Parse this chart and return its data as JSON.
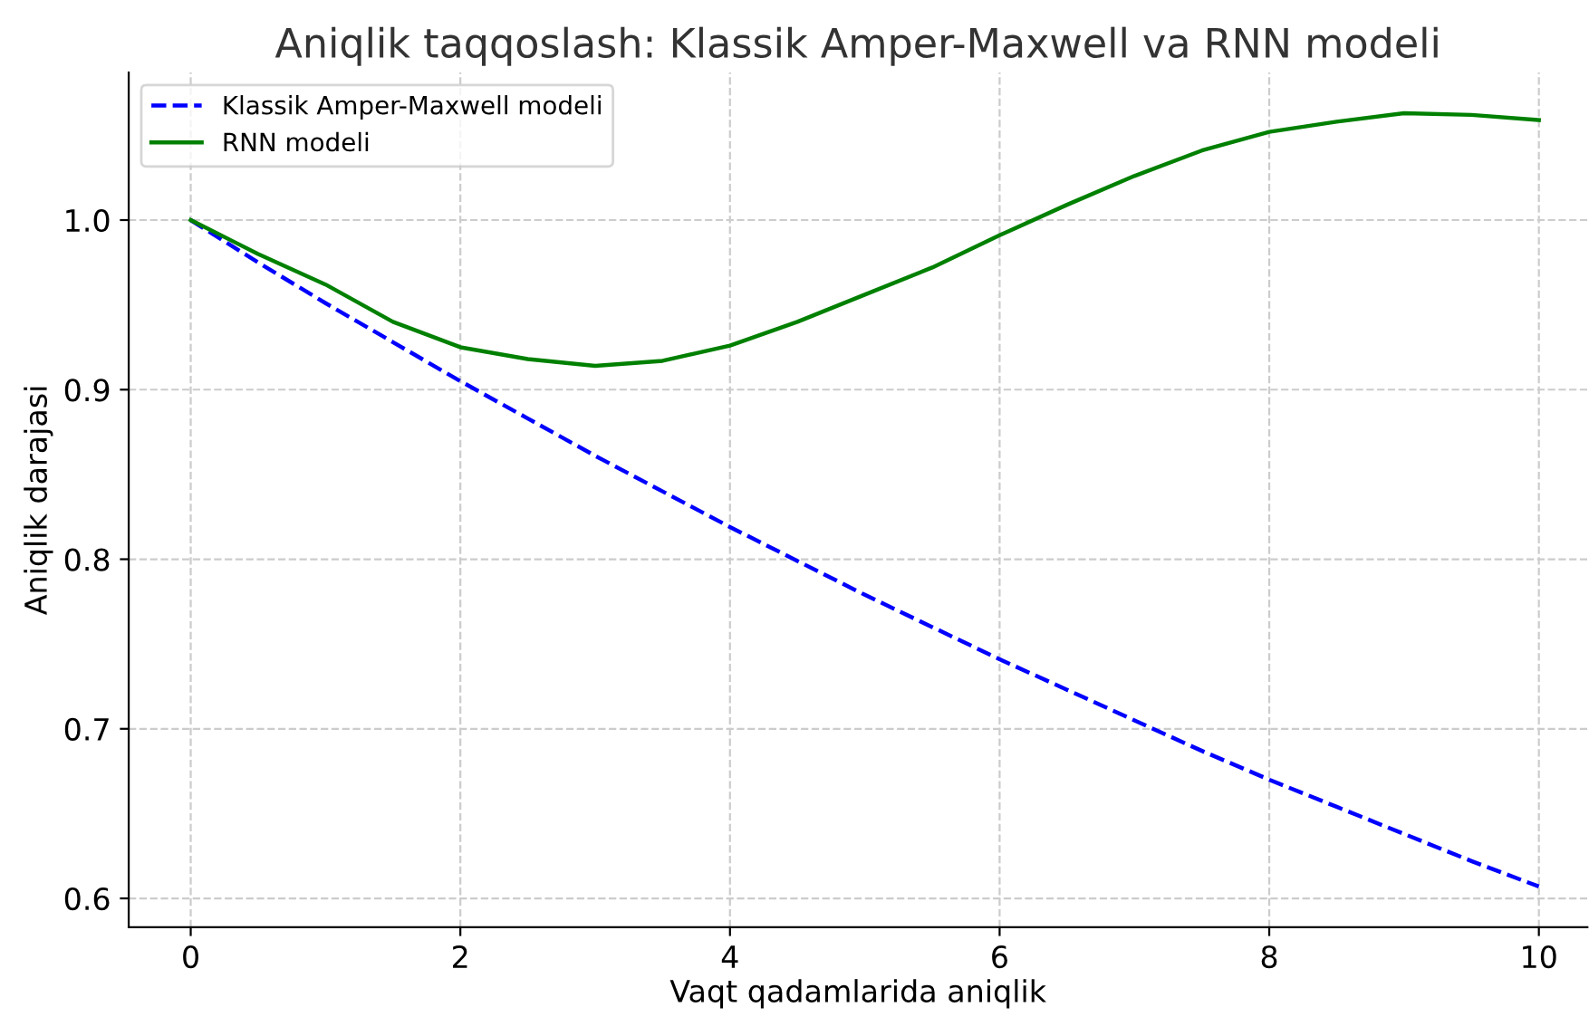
{
  "chart_data": {
    "type": "line",
    "title": "Aniqlik taqqoslash: Klassik Amper-Maxwell va RNN modeli",
    "xlabel": "Vaqt qadamlarida aniqlik",
    "ylabel": "Aniqlik darajasi",
    "x": [
      0,
      0.5,
      1,
      1.5,
      2,
      2.5,
      3,
      3.5,
      4,
      4.5,
      5,
      5.5,
      6,
      6.5,
      7,
      7.5,
      8,
      8.5,
      9,
      9.5,
      10
    ],
    "series": [
      {
        "name": "Klassik Amper-Maxwell modeli",
        "color": "#0000ff",
        "line_style": "dashed",
        "values": [
          1.0,
          0.975,
          0.951,
          0.928,
          0.905,
          0.883,
          0.861,
          0.84,
          0.819,
          0.799,
          0.779,
          0.76,
          0.741,
          0.723,
          0.705,
          0.687,
          0.67,
          0.654,
          0.638,
          0.622,
          0.607
        ]
      },
      {
        "name": "RNN modeli",
        "color": "#008000",
        "line_style": "solid",
        "values": [
          1.0,
          0.98,
          0.962,
          0.94,
          0.925,
          0.918,
          0.914,
          0.917,
          0.926,
          0.94,
          0.956,
          0.972,
          0.991,
          1.009,
          1.026,
          1.041,
          1.052,
          1.058,
          1.063,
          1.062,
          1.059
        ]
      }
    ],
    "xlim": [
      -0.46,
      10.36
    ],
    "ylim": [
      0.583,
      1.087
    ],
    "xticks": [
      0,
      2,
      4,
      6,
      8,
      10
    ],
    "yticks": [
      0.6,
      0.7,
      0.8,
      0.9,
      {
        "value": 1,
        "label": "1.0"
      }
    ],
    "grid": true,
    "legend": "top left"
  }
}
